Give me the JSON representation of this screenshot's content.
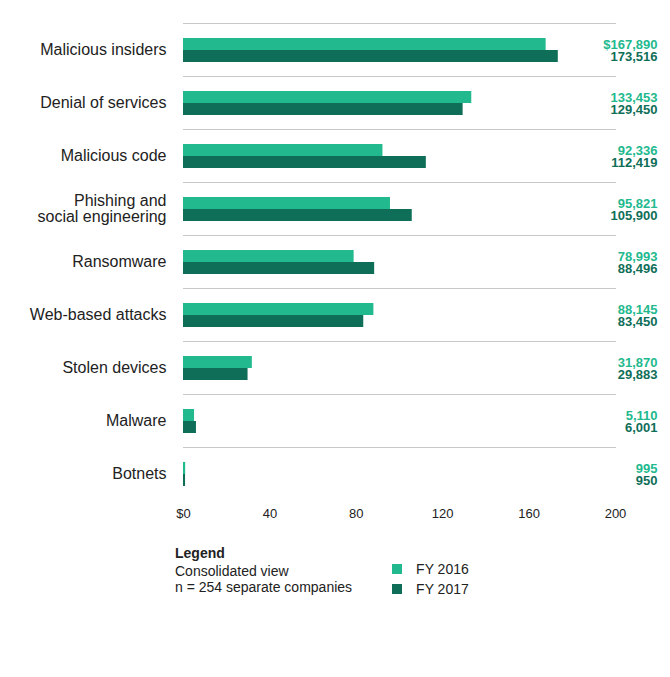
{
  "chart_data": {
    "type": "bar",
    "orientation": "horizontal",
    "categories": [
      "Malicious insiders",
      "Denial of services",
      "Malicious code",
      "Phishing and social engineering",
      "Ransomware",
      "Web-based attacks",
      "Stolen devices",
      "Malware",
      "Botnets"
    ],
    "series": [
      {
        "name": "FY 2016",
        "color": "#22b98e",
        "values": [
          167.89,
          133.453,
          92.336,
          95.821,
          78.993,
          88.145,
          31.87,
          5.11,
          0.995
        ],
        "value_labels": [
          "$167,890",
          "133,453",
          "92,336",
          "95,821",
          "78,993",
          "88,145",
          "31,870",
          "5,110",
          "995"
        ]
      },
      {
        "name": "FY 2017",
        "color": "#0f6e58",
        "values": [
          173.516,
          129.45,
          112.419,
          105.9,
          88.496,
          83.45,
          29.883,
          6.001,
          0.95
        ],
        "value_labels": [
          "173,516",
          "129,450",
          "112,419",
          "105,900",
          "88,496",
          "83,450",
          "29,883",
          "6,001",
          "950"
        ]
      }
    ],
    "xlim": [
      0,
      200
    ],
    "xticks": [
      {
        "value": 0,
        "label": "$0"
      },
      40,
      80,
      120,
      160,
      200
    ],
    "grid": false,
    "data_labels": true,
    "legend": "bottom-left",
    "legend_title": "Legend",
    "annotations": [
      "Consolidated view",
      "n = 254 separate companies"
    ]
  }
}
